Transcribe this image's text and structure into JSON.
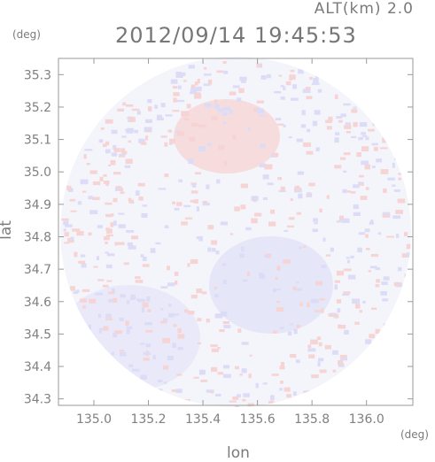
{
  "header": {
    "alt_label": "ALT(km)  2.0",
    "timestamp": "2012/09/14  19:45:53",
    "lat_unit": "(deg)",
    "lon_unit": "(deg)"
  },
  "axes": {
    "xlabel": "lon",
    "ylabel": "lat",
    "x_ticks": [
      "135.0",
      "135.2",
      "135.4",
      "135.6",
      "135.8",
      "136.0"
    ],
    "x_tick_values": [
      135.0,
      135.2,
      135.4,
      135.6,
      135.8,
      136.0
    ],
    "y_ticks": [
      "35.3",
      "35.2",
      "35.1",
      "35.0",
      "34.9",
      "34.8",
      "34.7",
      "34.6",
      "34.5",
      "34.4",
      "34.3"
    ],
    "y_tick_values": [
      35.3,
      35.2,
      35.1,
      35.0,
      34.9,
      34.8,
      34.7,
      34.6,
      34.5,
      34.4,
      34.3
    ],
    "xlim": [
      134.87,
      136.17
    ],
    "ylim": [
      34.28,
      35.35
    ]
  },
  "field": {
    "center_lon": 135.52,
    "center_lat": 34.815,
    "positive_color": "#f7d4d4",
    "negative_color": "#dcdcf7",
    "neutral_color": "#f4f4fb"
  }
}
